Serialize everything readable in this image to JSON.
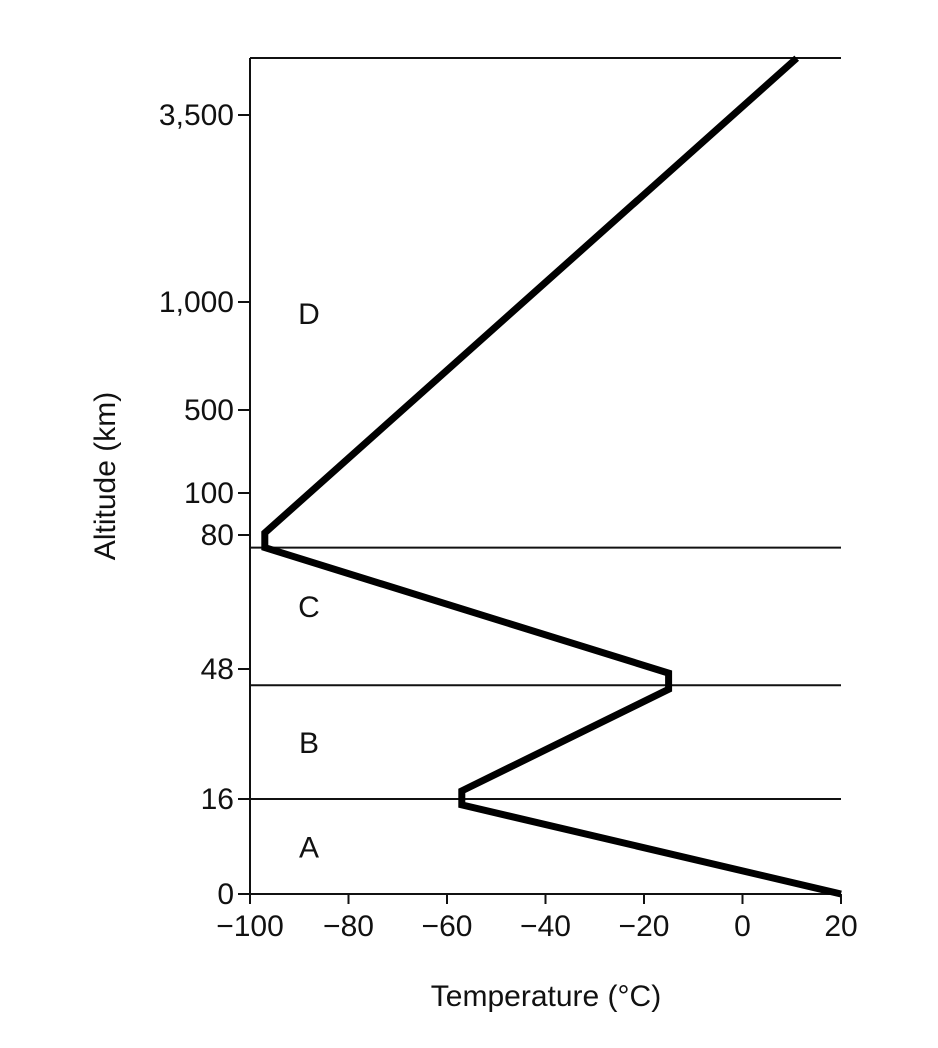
{
  "chart_data": {
    "type": "line",
    "title": "",
    "xlabel": "Temperature (°C)",
    "ylabel": "Altitude (km)",
    "xlim": [
      -100,
      20
    ],
    "x_ticks": [
      -100,
      -80,
      -60,
      -40,
      -20,
      0,
      20
    ],
    "x_tick_labels": [
      "−100",
      "−80",
      "−60",
      "−40",
      "−20",
      "0",
      "20"
    ],
    "y_scale": "non-uniform",
    "y_ticks": [
      0,
      16,
      48,
      80,
      100,
      500,
      1000,
      3500
    ],
    "y_tick_labels": [
      "0",
      "16",
      "48",
      "80",
      "100",
      "500",
      "1,000",
      "3,500"
    ],
    "grid": false,
    "series": [
      {
        "x": [
          20,
          -57,
          -57,
          -15,
          -15,
          -97,
          -97,
          11
        ],
        "y": [
          0,
          15,
          18,
          43,
          47,
          77,
          81,
          4260
        ]
      }
    ],
    "layer_boundaries": [
      16,
      44,
      77
    ],
    "region_labels": [
      {
        "text": "A",
        "altitude": 8
      },
      {
        "text": "B",
        "altitude": 30
      },
      {
        "text": "C",
        "altitude": 63
      },
      {
        "text": "D",
        "altitude": 950
      }
    ]
  }
}
